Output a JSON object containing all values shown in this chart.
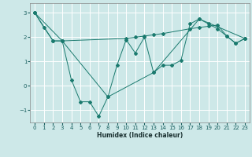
{
  "title": "",
  "xlabel": "Humidex (Indice chaleur)",
  "background_color": "#cde8e8",
  "grid_color": "#ffffff",
  "line_color": "#1a7a6e",
  "xlim": [
    -0.5,
    23.5
  ],
  "ylim": [
    -1.5,
    3.4
  ],
  "yticks": [
    -1,
    0,
    1,
    2,
    3
  ],
  "xticks": [
    0,
    1,
    2,
    3,
    4,
    5,
    6,
    7,
    8,
    9,
    10,
    11,
    12,
    13,
    14,
    15,
    16,
    17,
    18,
    19,
    20,
    21,
    22,
    23
  ],
  "series": [
    {
      "x": [
        0,
        1,
        2,
        3,
        4,
        5,
        6,
        7,
        8,
        9,
        10,
        11,
        12,
        13,
        14,
        15,
        16,
        17,
        18,
        19,
        20,
        21,
        22,
        23
      ],
      "y": [
        3.0,
        2.4,
        1.85,
        1.85,
        0.25,
        -0.65,
        -0.65,
        -1.25,
        -0.45,
        0.85,
        1.9,
        1.35,
        2.0,
        0.55,
        0.85,
        0.85,
        1.05,
        2.55,
        2.75,
        2.55,
        2.35,
        2.05,
        1.75,
        1.95
      ]
    },
    {
      "x": [
        0,
        2,
        3,
        10,
        11,
        12,
        13,
        14,
        17,
        18,
        19,
        20,
        21,
        22,
        23
      ],
      "y": [
        3.0,
        1.85,
        1.85,
        1.95,
        2.0,
        2.05,
        2.1,
        2.15,
        2.35,
        2.4,
        2.45,
        2.5,
        2.05,
        1.75,
        1.95
      ]
    },
    {
      "x": [
        0,
        3,
        8,
        13,
        18,
        23
      ],
      "y": [
        3.0,
        1.85,
        -0.45,
        0.55,
        2.75,
        1.95
      ]
    }
  ]
}
